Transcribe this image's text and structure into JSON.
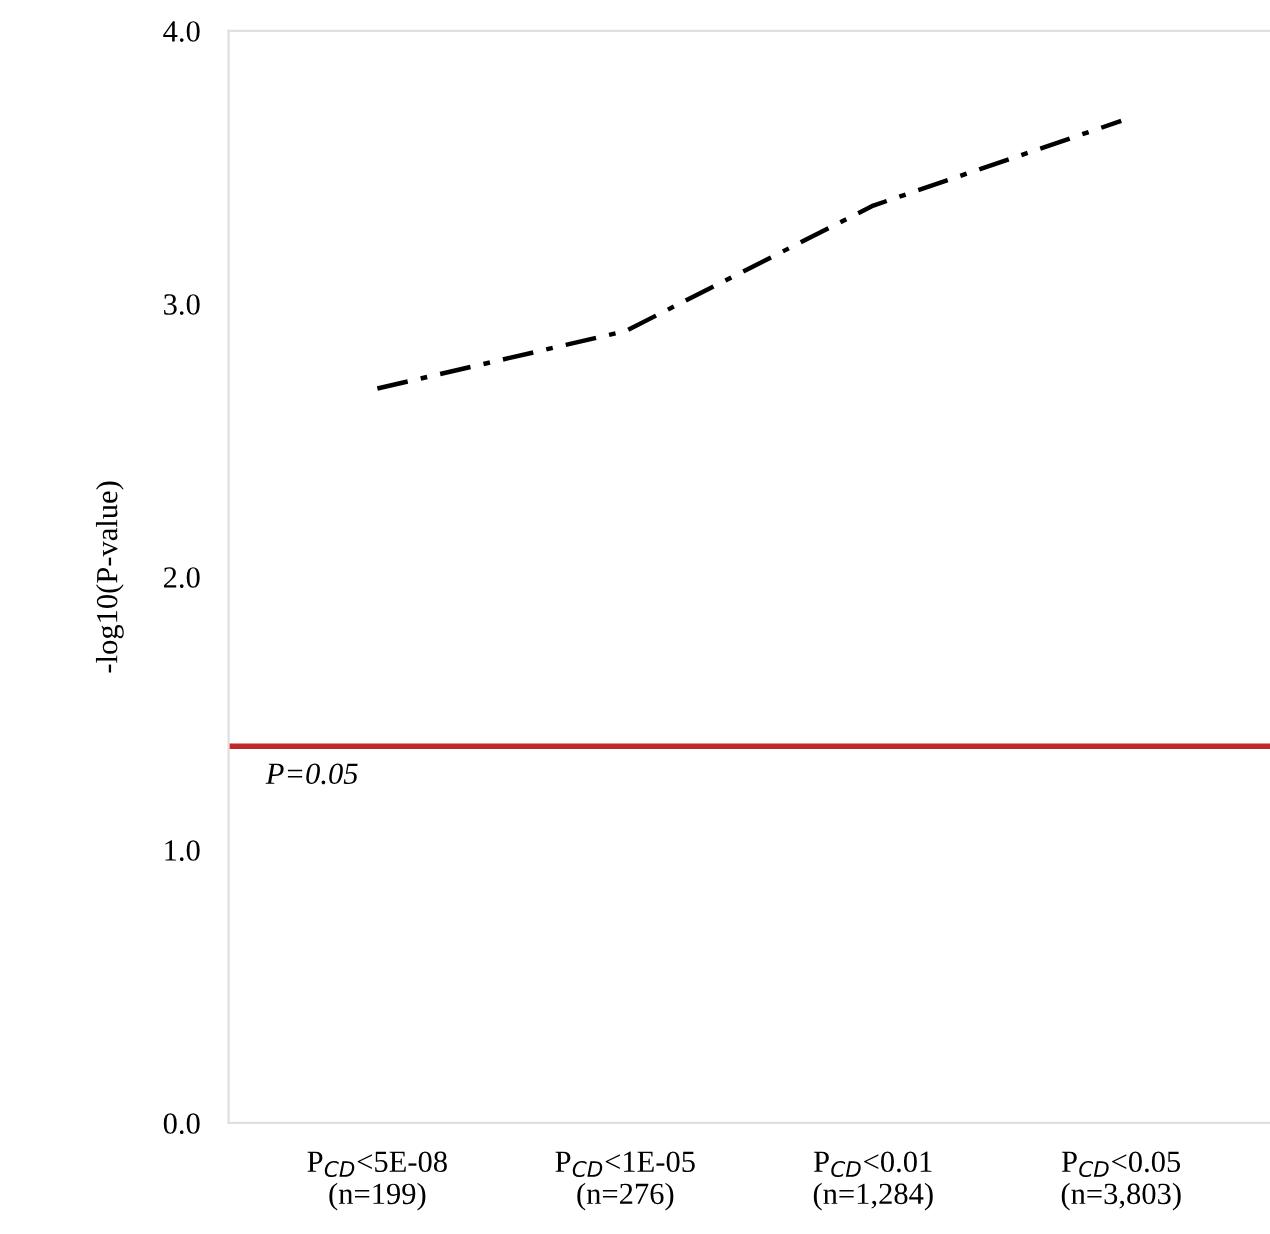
{
  "chart_data": {
    "type": "line",
    "ylabel": "-log10(P-value)",
    "categories": [
      "P$_{CD}$<5E-08\n(n=199)",
      "P$_{CD}$<1E-05\n(n=276)",
      "P$_{CD}$<0.01\n(n=1,284)",
      "P$_{CD}$<0.05\n(n=3,803)"
    ],
    "series": [
      {
        "color": "#000000",
        "values": [
          2.69,
          2.9,
          3.36,
          3.67
        ]
      }
    ],
    "ylim": [
      0,
      4
    ],
    "yticks": [
      {
        "value": 0,
        "label": "0.0"
      },
      {
        "value": 1,
        "label": "1.0"
      },
      {
        "value": 2,
        "label": "2.0"
      },
      {
        "value": 3,
        "label": "3.0"
      },
      {
        "value": 4,
        "label": "4.0"
      }
    ],
    "ref_lines": [
      {
        "axis": "y",
        "value": 1.38,
        "color": "#c0282a"
      }
    ],
    "annotations": [
      "P=0.05"
    ],
    "line_style": "dashed",
    "marker": "none",
    "grid": false
  }
}
